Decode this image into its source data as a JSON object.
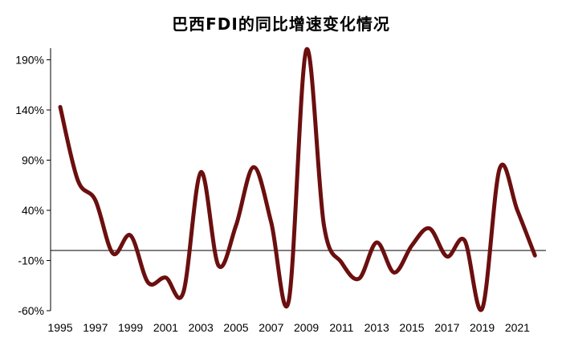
{
  "chart_data": {
    "type": "line",
    "title": "巴西FDI的同比增速变化情况",
    "xlabel": "",
    "ylabel": "",
    "x": [
      1995,
      1996,
      1997,
      1998,
      1999,
      2000,
      2001,
      2002,
      2003,
      2004,
      2005,
      2006,
      2007,
      2008,
      2009,
      2010,
      2011,
      2012,
      2013,
      2014,
      2015,
      2016,
      2017,
      2018,
      2019,
      2020,
      2021,
      2022
    ],
    "series": [
      {
        "name": "",
        "values": [
          143,
          70,
          50,
          -3,
          15,
          -32,
          -27,
          -42,
          78,
          -15,
          25,
          83,
          28,
          -50,
          200,
          25,
          -12,
          -28,
          8,
          -22,
          5,
          22,
          -6,
          10,
          -58,
          82,
          40,
          -5
        ]
      }
    ],
    "ylim": [
      -60,
      200
    ],
    "yticks": [
      -60,
      -10,
      40,
      90,
      140,
      190
    ],
    "ytick_labels": [
      "-60%",
      "-10%",
      "40%",
      "90%",
      "140%",
      "190%"
    ],
    "xticks": [
      1995,
      1997,
      1999,
      2001,
      2003,
      2005,
      2007,
      2009,
      2011,
      2013,
      2015,
      2017,
      2019,
      2021
    ],
    "xtick_labels": [
      "1995",
      "1997",
      "1999",
      "2001",
      "2003",
      "2005",
      "2007",
      "2009",
      "2011",
      "2013",
      "2015",
      "2017",
      "2019",
      "2021"
    ],
    "baseline_value": 0,
    "grid": false,
    "legend": "none",
    "line_color": "#6b0f0f",
    "axis_color": "#000000"
  }
}
